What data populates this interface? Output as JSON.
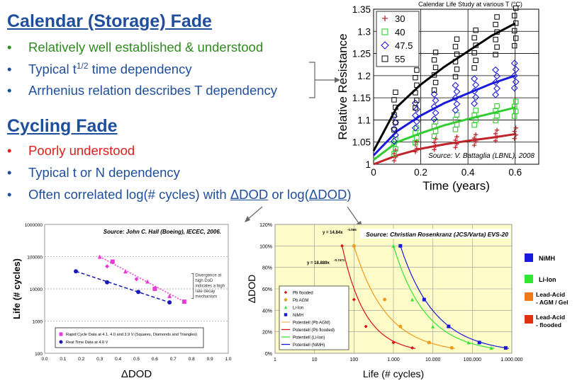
{
  "calendar": {
    "heading": "Calendar (Storage) Fade",
    "bullets": [
      {
        "text": "Relatively well established & understood",
        "color": "#2e8b1e"
      },
      {
        "text_pre": "Typical t",
        "text_sup": "1/2",
        "text_post": " time dependency",
        "color": "#1f4e9c"
      },
      {
        "text": "Arrhenius relation describes T dependency",
        "color": "#1f4e9c"
      }
    ]
  },
  "cycling": {
    "heading": "Cycling Fade",
    "bullets": [
      {
        "text": "Poorly understood",
        "color": "#e0201a"
      },
      {
        "text": "Typical t or N dependency",
        "color": "#1f4e9c"
      },
      {
        "text_a": "Often correlated log(# cycles) with ",
        "text_b": "ΔDOD",
        "text_c": " or log(",
        "text_d": "ΔDOD",
        "text_e": ")",
        "color": "#1f4e9c"
      }
    ]
  },
  "chart_data": [
    {
      "type": "scatter",
      "title": "Calendar Life Study at various T (°C)",
      "xlabel": "Time (years)",
      "ylabel": "Relative Resistance",
      "xlim": [
        0,
        0.7
      ],
      "ylim": [
        1,
        1.35
      ],
      "xticks": [
        "0",
        "0.2",
        "0.4",
        "0.6"
      ],
      "yticks": [
        "1",
        "1.05",
        "1.1",
        "1.15",
        "1.2",
        "1.25",
        "1.3",
        "1.35"
      ],
      "source": "Source: V. Battaglia (LBNL), 2008",
      "legend_position": "top-left",
      "series": [
        {
          "name": "30",
          "color": "#c0242b",
          "marker": "plus",
          "x": [
            0.09,
            0.18,
            0.26,
            0.35,
            0.43,
            0.52,
            0.6
          ],
          "y": [
            1.02,
            1.04,
            1.045,
            1.05,
            1.055,
            1.065,
            1.07
          ],
          "fit": [
            [
              0.0,
              1.0
            ],
            [
              0.1,
              1.02
            ],
            [
              0.2,
              1.035
            ],
            [
              0.3,
              1.045
            ],
            [
              0.4,
              1.053
            ],
            [
              0.5,
              1.06
            ],
            [
              0.6,
              1.068
            ]
          ]
        },
        {
          "name": "40",
          "color": "#33cc33",
          "marker": "square",
          "x": [
            0.09,
            0.18,
            0.26,
            0.35,
            0.43,
            0.52,
            0.6
          ],
          "y": [
            1.04,
            1.065,
            1.08,
            1.095,
            1.105,
            1.115,
            1.125
          ],
          "fit": [
            [
              0.0,
              1.01
            ],
            [
              0.1,
              1.05
            ],
            [
              0.2,
              1.07
            ],
            [
              0.3,
              1.088
            ],
            [
              0.4,
              1.102
            ],
            [
              0.5,
              1.115
            ],
            [
              0.6,
              1.128
            ]
          ]
        },
        {
          "name": "47.5",
          "color": "#1a1adb",
          "marker": "diamond",
          "x": [
            0.09,
            0.18,
            0.26,
            0.35,
            0.43,
            0.52,
            0.6
          ],
          "y": [
            1.08,
            1.11,
            1.13,
            1.15,
            1.165,
            1.185,
            1.2
          ],
          "fit": [
            [
              0.0,
              1.02
            ],
            [
              0.1,
              1.075
            ],
            [
              0.2,
              1.11
            ],
            [
              0.3,
              1.138
            ],
            [
              0.4,
              1.16
            ],
            [
              0.5,
              1.182
            ],
            [
              0.6,
              1.2
            ]
          ]
        },
        {
          "name": "55",
          "color": "#000000",
          "marker": "square-open",
          "x": [
            0.09,
            0.18,
            0.26,
            0.35,
            0.43,
            0.52,
            0.6
          ],
          "y": [
            1.12,
            1.17,
            1.21,
            1.24,
            1.26,
            1.29,
            1.31
          ],
          "fit": [
            [
              0.0,
              1.03
            ],
            [
              0.1,
              1.13
            ],
            [
              0.2,
              1.18
            ],
            [
              0.3,
              1.22
            ],
            [
              0.4,
              1.255
            ],
            [
              0.5,
              1.29
            ],
            [
              0.6,
              1.318
            ]
          ]
        }
      ]
    },
    {
      "type": "scatter",
      "xlabel": "ΔDOD",
      "ylabel": "Life (# cycles)",
      "xlim": [
        0,
        1
      ],
      "yscale": "log",
      "ylim": [
        100,
        1000000
      ],
      "xticks": [
        "0.0",
        "0.1",
        "0.2",
        "0.3",
        "0.4",
        "0.5",
        "0.6",
        "0.7",
        "0.8",
        "0.9",
        "1.0"
      ],
      "yticks": [
        "100",
        "1000",
        "10000",
        "100000",
        "1000000"
      ],
      "source": "Source: John C. Hall (Boeing), IECEC, 2006.",
      "annotation": [
        "Divergence at",
        "high DoD",
        "indicates a high",
        "rate decay",
        "mechanism"
      ],
      "legend_position": "bottom-center",
      "series": [
        {
          "name": "Rapid Cycle Data at 4.1, 4.0 and 3.9 V (Squares, Diamonds and Triangles)",
          "color": "#e83ad6",
          "marker": "square",
          "x": [
            0.3,
            0.34,
            0.37,
            0.44,
            0.5,
            0.56,
            0.6,
            0.68,
            0.76
          ],
          "y": [
            100000,
            50000,
            70000,
            35000,
            20000,
            17000,
            10000,
            6000,
            4000
          ]
        },
        {
          "name": "Real Time Data at 4.0 V",
          "color": "#1a1ab8",
          "marker": "circle",
          "x": [
            0.17,
            0.34,
            0.51,
            0.68
          ],
          "y": [
            35000,
            16000,
            8000,
            3800
          ]
        }
      ]
    },
    {
      "type": "scatter",
      "xlabel": "Life (# cycles)",
      "ylabel": "ΔDOD",
      "xscale": "log",
      "xlim": [
        1,
        1000000
      ],
      "ylim": [
        0,
        120
      ],
      "xticks": [
        "1",
        "10",
        "100",
        "1.000",
        "10.000",
        "100.000",
        "1.000.000"
      ],
      "yticks": [
        "0%",
        "20%",
        "40%",
        "60%",
        "80%",
        "100%",
        "120%"
      ],
      "source": "Source: Christian Rosenkranz (JCS/Varta) EVS-20",
      "equations": [
        "y = 14.84x",
        "-0.566",
        "y = 18.889x",
        "-0.7471"
      ],
      "legend_position": "bottom-left",
      "legend_entries": [
        "Pb flooded",
        "Pb AGM",
        "Li-Ion",
        "NiMH",
        "Potentiell (Pb AGM)",
        "Potentiell (Pb flooded)",
        "Potentiell (Li-Ion)",
        "Potentiell (NiMH)"
      ],
      "side_legend": [
        {
          "label": "NiMH",
          "color": "#1a1adb"
        },
        {
          "label": "Li-Ion",
          "color": "#33e633"
        },
        {
          "label": "Lead-Acid - AGM / Gel",
          "color": "#f07a1a"
        },
        {
          "label": "Lead-Acid - flooded",
          "color": "#e03010"
        }
      ],
      "series": [
        {
          "name": "Pb flooded",
          "color": "#e01010",
          "x": [
            50,
            100,
            200,
            1000,
            3000
          ],
          "y": [
            100,
            50,
            25,
            10,
            5
          ]
        },
        {
          "name": "Pb AGM",
          "color": "#f09a1a",
          "x": [
            100,
            600,
            1500,
            8000,
            30000
          ],
          "y": [
            100,
            50,
            25,
            10,
            5
          ]
        },
        {
          "name": "Li-Ion",
          "color": "#33e633",
          "x": [
            1000,
            3000,
            10000,
            80000,
            300000
          ],
          "y": [
            100,
            50,
            25,
            10,
            5
          ]
        },
        {
          "name": "NiMH",
          "color": "#1a1adb",
          "x": [
            1500,
            6000,
            25000,
            150000,
            700000
          ],
          "y": [
            100,
            50,
            25,
            10,
            5
          ]
        }
      ]
    }
  ]
}
